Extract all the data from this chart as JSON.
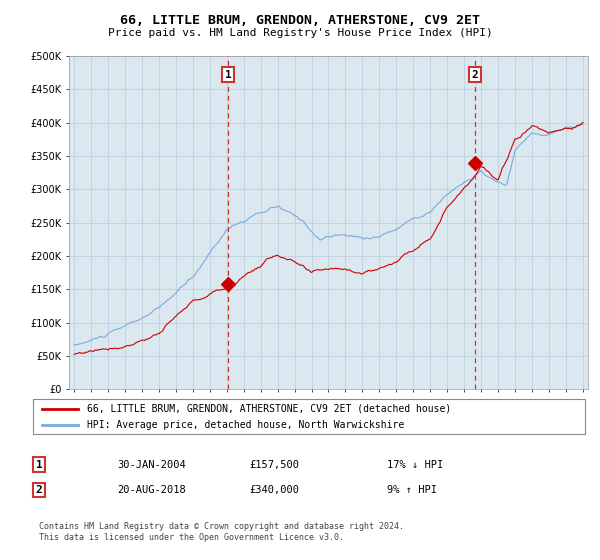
{
  "title": "66, LITTLE BRUM, GRENDON, ATHERSTONE, CV9 2ET",
  "subtitle": "Price paid vs. HM Land Registry's House Price Index (HPI)",
  "legend_line1": "66, LITTLE BRUM, GRENDON, ATHERSTONE, CV9 2ET (detached house)",
  "legend_line2": "HPI: Average price, detached house, North Warwickshire",
  "footnote": "Contains HM Land Registry data © Crown copyright and database right 2024.\nThis data is licensed under the Open Government Licence v3.0.",
  "sale1_label": "1",
  "sale1_date": "30-JAN-2004",
  "sale1_price": "£157,500",
  "sale1_hpi": "17% ↓ HPI",
  "sale1_year": 2004.08,
  "sale1_value": 157500,
  "sale2_label": "2",
  "sale2_date": "20-AUG-2018",
  "sale2_price": "£340,000",
  "sale2_hpi": "9% ↑ HPI",
  "sale2_year": 2018.63,
  "sale2_value": 340000,
  "ylim": [
    0,
    500000
  ],
  "yticks": [
    0,
    50000,
    100000,
    150000,
    200000,
    250000,
    300000,
    350000,
    400000,
    450000,
    500000
  ],
  "price_color": "#cc0000",
  "hpi_color": "#7aaadd",
  "marker_color": "#cc0000",
  "background_color": "#ffffff",
  "plot_bg_color": "#dce8f0",
  "grid_color": "#b8ccd8",
  "box_color": "#cc3333"
}
